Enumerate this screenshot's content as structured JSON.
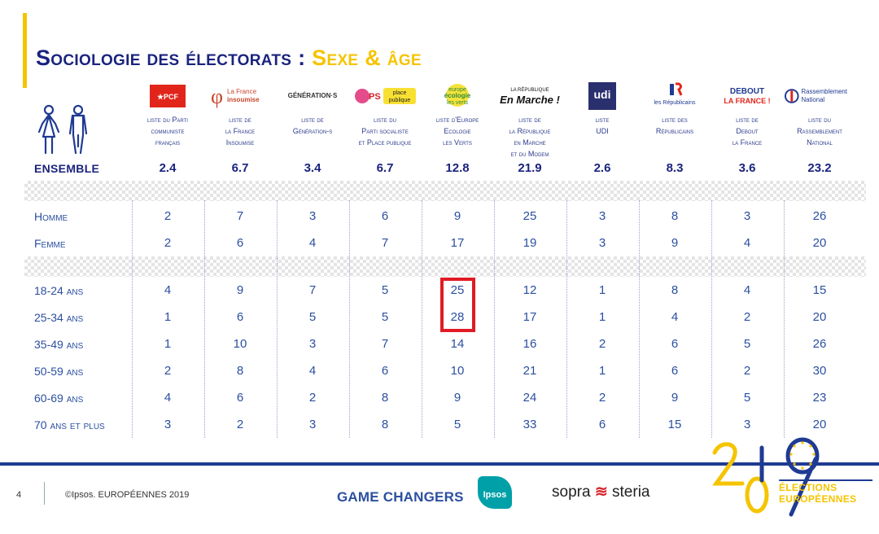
{
  "title": {
    "part1": "Sociologie des électorats : ",
    "part2": "Sexe & âge"
  },
  "icons": {
    "people": "man-woman-icon"
  },
  "columns": [
    {
      "logo_text": "PCF",
      "label": "liste du Parti\ncommuniste\nfrançais"
    },
    {
      "logo_text": "La France insoumise",
      "label": "liste de\nla France\nInsoumise"
    },
    {
      "logo_text": "GÉNÉRATION·S",
      "label": "liste de\nGénération-s"
    },
    {
      "logo_text": "PS place publique",
      "label": "liste du\nParti socialiste\net Place publique"
    },
    {
      "logo_text": "europe écologie les verts",
      "label": "liste d'Europe\nEcologie\nles Verts"
    },
    {
      "logo_text": "En Marche !",
      "logo_small": "LA RÉPUBLIQUE",
      "label": "liste de\nla République\nen Marche\net du Modem"
    },
    {
      "logo_text": "udi",
      "label": "liste\nUDI"
    },
    {
      "logo_text": "les Républicains",
      "label": "liste des\nRépublicains"
    },
    {
      "logo_text": "DEBOUT LA FRANCE !",
      "label": "liste de\nDebout\nla France"
    },
    {
      "logo_text": "Rassemblement National",
      "label": "liste du\nRassemblement\nNational"
    }
  ],
  "rows": {
    "ensemble": {
      "label": "ENSEMBLE",
      "values": [
        "2.4",
        "6.7",
        "3.4",
        "6.7",
        "12.8",
        "21.9",
        "2.6",
        "8.3",
        "3.6",
        "23.2"
      ]
    },
    "sex": [
      {
        "label": "Homme",
        "values": [
          "2",
          "7",
          "3",
          "6",
          "9",
          "25",
          "3",
          "8",
          "3",
          "26"
        ]
      },
      {
        "label": "Femme",
        "values": [
          "2",
          "6",
          "4",
          "7",
          "17",
          "19",
          "3",
          "9",
          "4",
          "20"
        ]
      }
    ],
    "age": [
      {
        "label": "18-24 ans",
        "values": [
          "4",
          "9",
          "7",
          "5",
          "25",
          "12",
          "1",
          "8",
          "4",
          "15"
        ]
      },
      {
        "label": "25-34 ans",
        "values": [
          "1",
          "6",
          "5",
          "5",
          "28",
          "17",
          "1",
          "4",
          "2",
          "20"
        ]
      },
      {
        "label": "35-49 ans",
        "values": [
          "1",
          "10",
          "3",
          "7",
          "14",
          "16",
          "2",
          "6",
          "5",
          "26"
        ]
      },
      {
        "label": "50-59 ans",
        "values": [
          "2",
          "8",
          "4",
          "6",
          "10",
          "21",
          "1",
          "6",
          "2",
          "30"
        ]
      },
      {
        "label": "60-69 ans",
        "values": [
          "4",
          "6",
          "2",
          "8",
          "9",
          "24",
          "2",
          "9",
          "5",
          "23"
        ]
      },
      {
        "label": "70 ans et plus",
        "values": [
          "3",
          "2",
          "3",
          "8",
          "5",
          "33",
          "6",
          "15",
          "3",
          "20"
        ]
      }
    ]
  },
  "footer": {
    "page_number": "4",
    "copyright": "©Ipsos.  EUROPÉENNES 2019",
    "game_changers": "GAME CHANGERS",
    "ipsos": "Ipsos",
    "sopra_left": "sopra",
    "sopra_right": "steria",
    "brand_year": "2019",
    "brand_line1": "ÉLECTIONS",
    "brand_line2": "EUROPÉENNES"
  },
  "colors": {
    "accent": "#f5c400",
    "navy": "#1a237e",
    "text_blue": "#2b4fa0",
    "highlight": "#e01b24"
  }
}
